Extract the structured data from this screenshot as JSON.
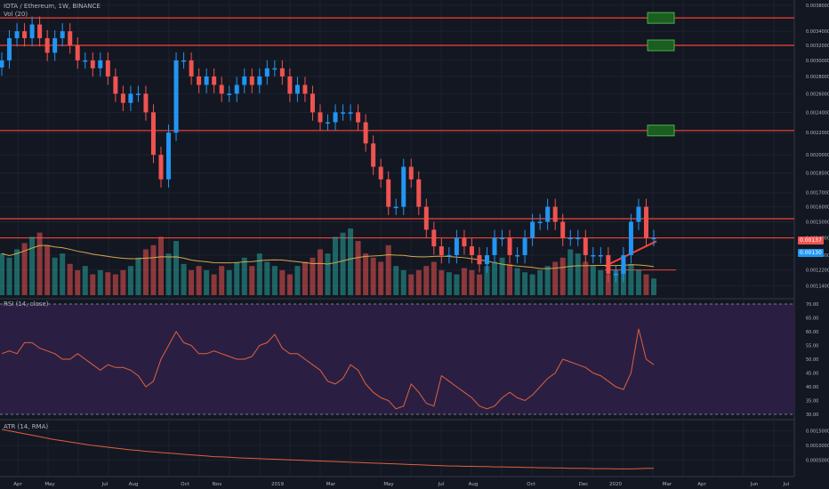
{
  "header": {
    "symbol": "IOTA / Ethereum, 1W, BINANCE",
    "volume_label": "Vol (20)",
    "rsi_label": "RSI (14, close)",
    "atr_label": "ATR (14, RMA)"
  },
  "price_tags": {
    "current": "0.00137",
    "lower": "0.00130"
  },
  "colors": {
    "background": "#131722",
    "grid": "#1e2230",
    "up": "#2196f3",
    "down": "#ef5350",
    "level": "#f44336",
    "rsi_band": "#2a1f43",
    "target": "#1b5e20"
  },
  "chart_data": [
    {
      "type": "candlestick",
      "name": "price",
      "y_ticks": [
        "0.00380000",
        "0.00340000",
        "0.00320000",
        "0.00300000",
        "0.00280000",
        "0.00260000",
        "0.00240000",
        "0.00220000",
        "0.00200000",
        "0.00185000",
        "0.00170000",
        "0.00160000",
        "0.00150000",
        "0.00140000",
        "0.00130000",
        "0.00122000",
        "0.00114000"
      ],
      "x_ticks": [
        "Apr",
        "May",
        "Jul",
        "Aug",
        "Oct",
        "Nov",
        "2019",
        "Mar",
        "May",
        "Jul",
        "Aug",
        "Oct",
        "Dec",
        "2020",
        "Mar",
        "Apr",
        "Jun",
        "Jul"
      ],
      "horizontal_levels": [
        0.0036,
        0.0032,
        0.00222,
        0.00152,
        0.0014
      ],
      "close": [
        0.003,
        0.0033,
        0.0034,
        0.0033,
        0.0035,
        0.0033,
        0.0031,
        0.0033,
        0.0034,
        0.0032,
        0.003,
        0.003,
        0.0029,
        0.003,
        0.0028,
        0.0026,
        0.0025,
        0.0026,
        0.0026,
        0.0024,
        0.002,
        0.0018,
        0.0022,
        0.003,
        0.003,
        0.0028,
        0.0027,
        0.0028,
        0.0027,
        0.0026,
        0.0026,
        0.0027,
        0.0028,
        0.0027,
        0.0028,
        0.0029,
        0.0029,
        0.0028,
        0.0026,
        0.0027,
        0.0026,
        0.0024,
        0.0023,
        0.0023,
        0.0024,
        0.0024,
        0.0024,
        0.0023,
        0.0021,
        0.0019,
        0.0018,
        0.0016,
        0.0016,
        0.0019,
        0.0018,
        0.0016,
        0.00145,
        0.00135,
        0.0013,
        0.0013,
        0.0014,
        0.00135,
        0.0013,
        0.00125,
        0.0013,
        0.0014,
        0.0014,
        0.0013,
        0.0013,
        0.0014,
        0.0015,
        0.0015,
        0.0016,
        0.0015,
        0.0014,
        0.0014,
        0.0014,
        0.0013,
        0.0013,
        0.0013,
        0.0012,
        0.0012,
        0.0013,
        0.0015,
        0.0016,
        0.0014,
        0.0014
      ],
      "volume": [
        20,
        18,
        22,
        25,
        28,
        30,
        24,
        18,
        20,
        15,
        12,
        14,
        10,
        12,
        11,
        10,
        12,
        14,
        18,
        22,
        24,
        28,
        20,
        26,
        15,
        12,
        14,
        12,
        10,
        14,
        12,
        16,
        18,
        14,
        20,
        16,
        14,
        12,
        10,
        14,
        16,
        18,
        22,
        20,
        28,
        30,
        32,
        26,
        20,
        18,
        16,
        24,
        14,
        12,
        10,
        12,
        14,
        16,
        12,
        11,
        10,
        13,
        12,
        10,
        14,
        16,
        18,
        15,
        13,
        11,
        10,
        12,
        14,
        16,
        18,
        22,
        20,
        16,
        14,
        12,
        10,
        12,
        14,
        15,
        12,
        10,
        8
      ]
    },
    {
      "type": "line",
      "name": "RSI (14, close)",
      "y_ticks": [
        "70.00",
        "65.00",
        "60.00",
        "55.00",
        "50.00",
        "45.00",
        "40.00",
        "35.00",
        "30.00"
      ],
      "ylim": [
        30,
        70
      ],
      "values": [
        52,
        53,
        52,
        56,
        56,
        54,
        53,
        52,
        50,
        50,
        52,
        50,
        48,
        46,
        48,
        47,
        47,
        46,
        44,
        40,
        42,
        50,
        55,
        60,
        56,
        55,
        52,
        52,
        53,
        52,
        51,
        50,
        50,
        51,
        55,
        56,
        59,
        54,
        52,
        52,
        50,
        48,
        46,
        42,
        41,
        43,
        48,
        46,
        41,
        38,
        36,
        35,
        32,
        33,
        41,
        38,
        34,
        33,
        44,
        42,
        40,
        38,
        36,
        33,
        32,
        33,
        36,
        38,
        36,
        35,
        37,
        40,
        43,
        45,
        50,
        49,
        48,
        47,
        45,
        44,
        42,
        40,
        39,
        45,
        61,
        50,
        48
      ]
    },
    {
      "type": "line",
      "name": "ATR (14, RMA)",
      "y_ticks": [
        "0.00150000",
        "0.00100000",
        "0.00050000"
      ],
      "values": [
        0.00155,
        0.0015,
        0.00145,
        0.0014,
        0.00135,
        0.0013,
        0.00125,
        0.0012,
        0.00116,
        0.00112,
        0.00108,
        0.00104,
        0.001,
        0.00097,
        0.00094,
        0.00091,
        0.00088,
        0.00085,
        0.00083,
        0.0008,
        0.00078,
        0.00076,
        0.00074,
        0.00072,
        0.0007,
        0.00068,
        0.00066,
        0.00064,
        0.00062,
        0.00061,
        0.0006,
        0.00058,
        0.00057,
        0.00056,
        0.00055,
        0.00054,
        0.00053,
        0.00052,
        0.00051,
        0.0005,
        0.00049,
        0.00048,
        0.00047,
        0.00046,
        0.00045,
        0.00044,
        0.00043,
        0.00042,
        0.00041,
        0.0004,
        0.00039,
        0.00038,
        0.00037,
        0.00036,
        0.00035,
        0.00034,
        0.00033,
        0.00032,
        0.00031,
        0.0003,
        0.0003,
        0.00029,
        0.00029,
        0.00028,
        0.00028,
        0.00027,
        0.00027,
        0.00026,
        0.00026,
        0.00025,
        0.00025,
        0.00024,
        0.00024,
        0.00023,
        0.00023,
        0.00022,
        0.00022,
        0.00022,
        0.00021,
        0.00021,
        0.00021,
        0.0002,
        0.0002,
        0.0002,
        0.00021,
        0.00022,
        0.00022
      ]
    }
  ]
}
